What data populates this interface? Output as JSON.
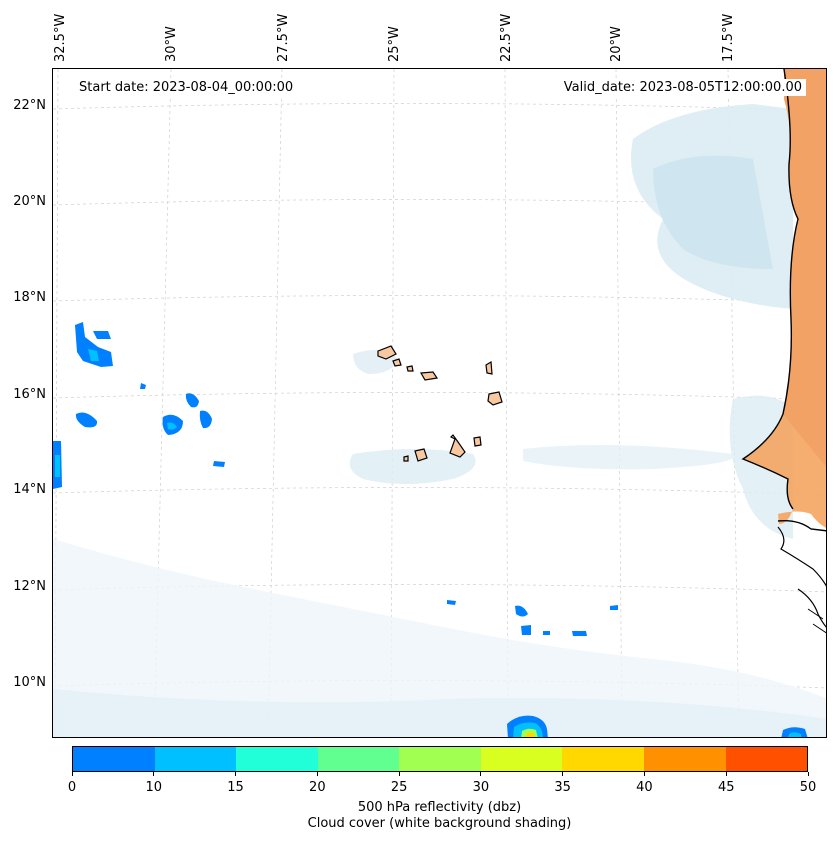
{
  "map": {
    "start_date": "Start date: 2023-08-04_00:00:00",
    "valid_date": "Valid_date: 2023-08-05T12:00:00.00",
    "lon_labels": [
      "32.5°W",
      "30°W",
      "27.5°W",
      "25°W",
      "22.5°W",
      "20°W",
      "17.5°W"
    ],
    "lat_labels": [
      "22°N",
      "20°N",
      "18°N",
      "16°N",
      "14°N",
      "12°N",
      "10°N"
    ],
    "ocean_color": "#ffffff",
    "land_color": "#f4a460",
    "cloud_color": "#dcecf4",
    "coastline_color": "#000000",
    "islands": [
      "Santo Antão",
      "São Vicente",
      "São Nicolau",
      "Sal",
      "Boa Vista",
      "Santiago",
      "Fogo",
      "Maio",
      "Brava"
    ]
  },
  "colorbar": {
    "ticks": [
      "0",
      "10",
      "15",
      "20",
      "25",
      "30",
      "35",
      "40",
      "45",
      "50"
    ],
    "colors": [
      "#0080ff",
      "#00c0ff",
      "#20ffd8",
      "#60ff90",
      "#a0ff50",
      "#d8ff20",
      "#ffd800",
      "#ff9000",
      "#ff5000"
    ],
    "label_line1": "500 hPa reflectivity (dbz)",
    "label_line2": "Cloud cover (white background shading)"
  }
}
